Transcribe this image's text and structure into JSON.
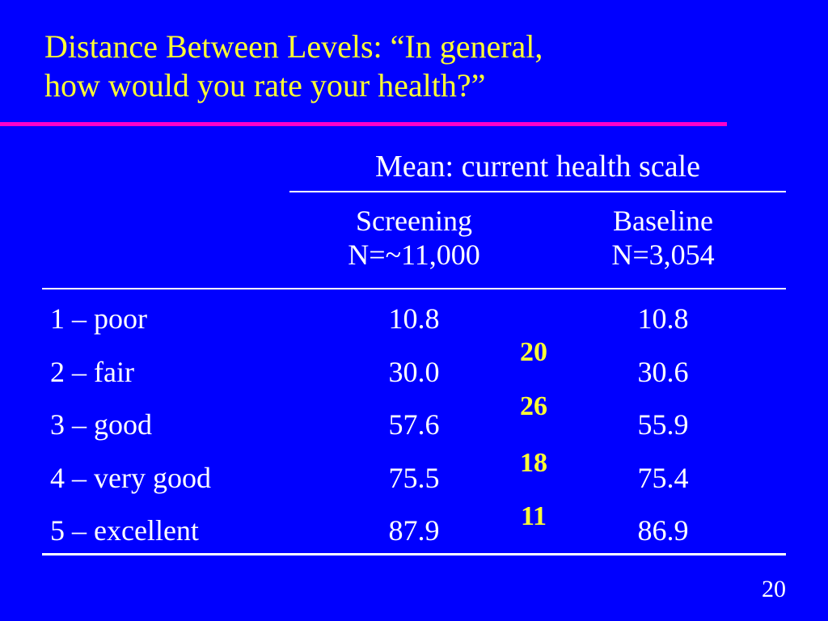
{
  "slide": {
    "title_line1": "Distance Between Levels: “In general,",
    "title_line2": "how would you rate your health?”",
    "page_number": "20"
  },
  "table": {
    "group_header": "Mean: current health scale",
    "columns": [
      {
        "name": "Screening",
        "n": "N=~11,000"
      },
      {
        "name": "Baseline",
        "n": "N=3,054"
      }
    ],
    "rows": [
      {
        "label": "1 – poor",
        "screening": "10.8",
        "baseline": "10.8"
      },
      {
        "label": "2 – fair",
        "screening": "30.0",
        "baseline": "30.6"
      },
      {
        "label": "3 – good",
        "screening": "57.6",
        "baseline": "55.9"
      },
      {
        "label": "4 – very good",
        "screening": "75.5",
        "baseline": "75.4"
      },
      {
        "label": "5 – excellent",
        "screening": "87.9",
        "baseline": "86.9"
      }
    ],
    "differences": [
      "20",
      "26",
      "18",
      "11"
    ]
  },
  "colors": {
    "background": "#0000ff",
    "title_text": "#ffff33",
    "title_rule": "#ff00cc",
    "difference_text": "#ffff33",
    "body_text": "#ffffff"
  }
}
